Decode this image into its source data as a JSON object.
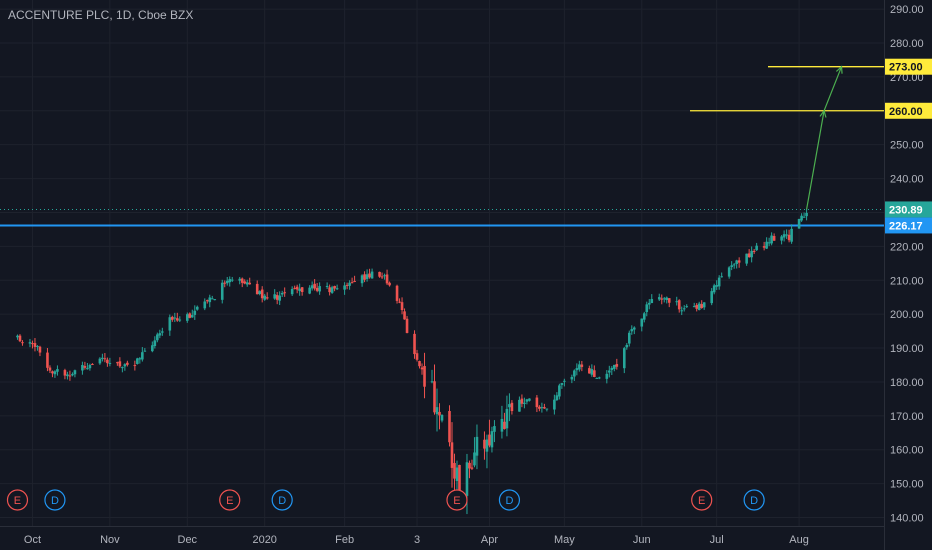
{
  "chart_data": {
    "type": "candlestick",
    "title": "ACCENTURE PLC, 1D, Cboe BZX",
    "price_ticks": [
      "140.00",
      "150.00",
      "160.00",
      "170.00",
      "180.00",
      "190.00",
      "200.00",
      "210.00",
      "220.00",
      "230.00",
      "240.00",
      "250.00",
      "260.00",
      "270.00",
      "280.00",
      "290.00"
    ],
    "price_range": [
      137.5,
      291.5
    ],
    "time_labels": [
      "Oct",
      "Nov",
      "Dec",
      "2020",
      "Feb",
      "3",
      "Apr",
      "May",
      "Jun",
      "Jul",
      "Aug"
    ],
    "close_series": [
      {
        "date": "2019-09-25",
        "close": 193
      },
      {
        "date": "2019-10-01",
        "close": 192
      },
      {
        "date": "2019-10-08",
        "close": 184
      },
      {
        "date": "2019-10-15",
        "close": 182
      },
      {
        "date": "2019-10-22",
        "close": 185
      },
      {
        "date": "2019-10-29",
        "close": 186
      },
      {
        "date": "2019-11-05",
        "close": 185
      },
      {
        "date": "2019-11-12",
        "close": 186
      },
      {
        "date": "2019-11-19",
        "close": 192
      },
      {
        "date": "2019-11-26",
        "close": 199
      },
      {
        "date": "2019-12-03",
        "close": 200
      },
      {
        "date": "2019-12-10",
        "close": 203
      },
      {
        "date": "2019-12-17",
        "close": 209
      },
      {
        "date": "2019-12-24",
        "close": 210
      },
      {
        "date": "2019-12-31",
        "close": 206
      },
      {
        "date": "2020-01-07",
        "close": 205
      },
      {
        "date": "2020-01-14",
        "close": 207
      },
      {
        "date": "2020-01-21",
        "close": 208
      },
      {
        "date": "2020-01-28",
        "close": 207
      },
      {
        "date": "2020-02-04",
        "close": 209
      },
      {
        "date": "2020-02-11",
        "close": 211
      },
      {
        "date": "2020-02-18",
        "close": 212
      },
      {
        "date": "2020-02-24",
        "close": 205
      },
      {
        "date": "2020-03-02",
        "close": 188
      },
      {
        "date": "2020-03-09",
        "close": 178
      },
      {
        "date": "2020-03-16",
        "close": 160
      },
      {
        "date": "2020-03-20",
        "close": 150
      },
      {
        "date": "2020-03-26",
        "close": 160
      },
      {
        "date": "2020-04-02",
        "close": 163
      },
      {
        "date": "2020-04-09",
        "close": 172
      },
      {
        "date": "2020-04-16",
        "close": 175
      },
      {
        "date": "2020-04-23",
        "close": 171
      },
      {
        "date": "2020-04-30",
        "close": 179
      },
      {
        "date": "2020-05-07",
        "close": 185
      },
      {
        "date": "2020-05-14",
        "close": 182
      },
      {
        "date": "2020-05-21",
        "close": 184
      },
      {
        "date": "2020-05-28",
        "close": 195
      },
      {
        "date": "2020-06-04",
        "close": 203
      },
      {
        "date": "2020-06-11",
        "close": 205
      },
      {
        "date": "2020-06-18",
        "close": 201
      },
      {
        "date": "2020-06-25",
        "close": 203
      },
      {
        "date": "2020-07-02",
        "close": 210
      },
      {
        "date": "2020-07-09",
        "close": 215
      },
      {
        "date": "2020-07-16",
        "close": 219
      },
      {
        "date": "2020-07-23",
        "close": 222
      },
      {
        "date": "2020-07-30",
        "close": 223
      },
      {
        "date": "2020-08-06",
        "close": 230
      }
    ],
    "horizontal_lines": [
      {
        "price": 226.17,
        "label": "226.17",
        "color": "#2196f3"
      },
      {
        "price": 260.0,
        "label": "260.00",
        "color": "#ffeb3b"
      },
      {
        "price": 273.0,
        "label": "273.00",
        "color": "#ffeb3b"
      }
    ],
    "last_price": {
      "price": 230.89,
      "label": "230.89",
      "color": "#26a69a"
    },
    "projection_path": [
      {
        "date": "2020-08-06",
        "price": 230.9
      },
      {
        "date": "2020-08-13",
        "price": 260.0
      },
      {
        "date": "2020-08-20",
        "price": 273.0
      }
    ],
    "events": [
      {
        "date": "2019-09-25",
        "kind": "E"
      },
      {
        "date": "2019-10-10",
        "kind": "D"
      },
      {
        "date": "2019-12-19",
        "kind": "E"
      },
      {
        "date": "2020-01-09",
        "kind": "D"
      },
      {
        "date": "2020-03-19",
        "kind": "E"
      },
      {
        "date": "2020-04-09",
        "kind": "D"
      },
      {
        "date": "2020-06-25",
        "kind": "E"
      },
      {
        "date": "2020-07-16",
        "kind": "D"
      }
    ],
    "colors": {
      "up": "#26a69a",
      "down": "#ef5350",
      "background": "#131722",
      "grid": "#1e222d",
      "axis_text": "#b2b5be",
      "event_E": "#ef5350",
      "event_D": "#2196f3",
      "projection": "#4caf50"
    },
    "grid": true
  }
}
